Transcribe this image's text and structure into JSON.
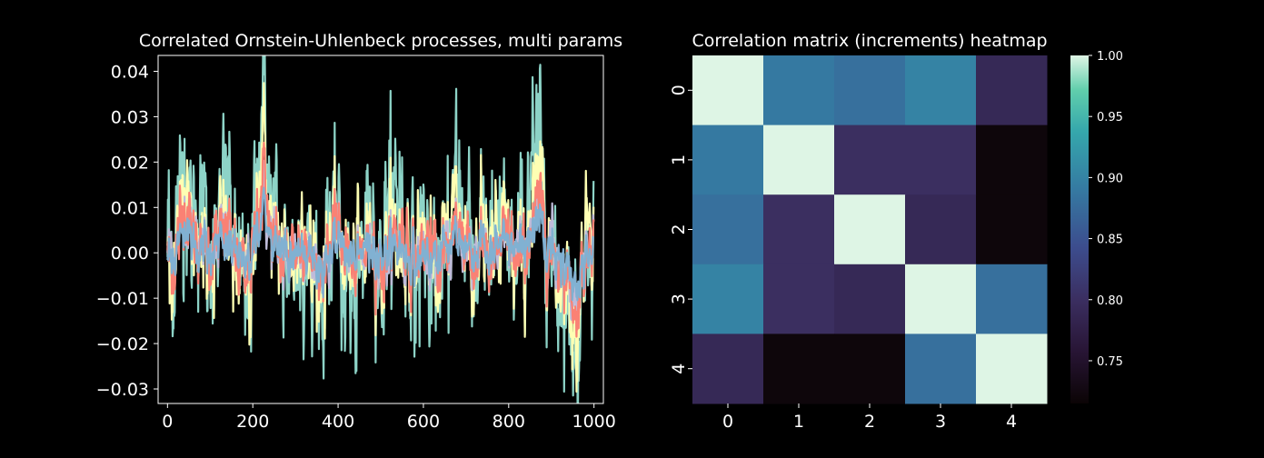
{
  "chart_data": [
    {
      "type": "line",
      "title": "Correlated Ornstein-Uhlenbeck processes, multi params",
      "xlabel": "",
      "ylabel": "",
      "xlim": [
        -22,
        1022
      ],
      "ylim": [
        -0.0332,
        0.0435
      ],
      "xticks": [
        0,
        200,
        400,
        600,
        800,
        1000
      ],
      "xtick_labels": [
        "0",
        "200",
        "400",
        "600",
        "800",
        "1000"
      ],
      "yticks": [
        -0.03,
        -0.02,
        -0.01,
        0.0,
        0.01,
        0.02,
        0.03,
        0.04
      ],
      "ytick_labels": [
        "−0.03",
        "−0.02",
        "−0.01",
        "0.00",
        "0.01",
        "0.02",
        "0.03",
        "0.04"
      ],
      "grid": false,
      "legend": "none",
      "n_points": 1000,
      "series": [
        {
          "color": "#8dd3c7",
          "approx_amplitude": 0.01
        },
        {
          "color": "#feffb3",
          "approx_amplitude": 0.006
        },
        {
          "color": "#bfbbd9",
          "approx_amplitude": 0.003
        },
        {
          "color": "#fa8174",
          "approx_amplitude": 0.004
        },
        {
          "color": "#81b1d2",
          "approx_amplitude": 0.0025
        }
      ],
      "anchors_x": [
        0,
        15,
        30,
        45,
        60,
        80,
        100,
        120,
        140,
        160,
        180,
        200,
        215,
        225,
        240,
        260,
        280,
        300,
        320,
        340,
        360,
        380,
        400,
        420,
        440,
        460,
        480,
        500,
        520,
        540,
        560,
        580,
        600,
        620,
        640,
        660,
        680,
        700,
        720,
        740,
        760,
        780,
        800,
        820,
        840,
        860,
        870,
        880,
        900,
        920,
        940,
        960,
        980,
        1000
      ],
      "anchors_y": [
        0.0,
        -0.002,
        0.008,
        0.018,
        0.006,
        0.002,
        -0.001,
        0.004,
        0.01,
        -0.002,
        -0.012,
        0.0,
        0.018,
        0.03,
        0.008,
        0.003,
        -0.002,
        0.001,
        0.006,
        -0.004,
        -0.008,
        0.002,
        0.007,
        -0.002,
        -0.006,
        0.001,
        0.004,
        -0.004,
        0.003,
        0.006,
        0.001,
        -0.003,
        0.002,
        -0.006,
        -0.004,
        0.005,
        0.011,
        0.004,
        -0.001,
        0.005,
        -0.003,
        0.003,
        0.002,
        -0.001,
        0.006,
        0.013,
        0.019,
        0.014,
        0.003,
        -0.005,
        -0.012,
        -0.019,
        0.0,
        0.01
      ]
    },
    {
      "type": "heatmap",
      "title": "Correlation matrix (increments) heatmap",
      "row_labels": [
        "0",
        "1",
        "2",
        "3",
        "4"
      ],
      "col_labels": [
        "0",
        "1",
        "2",
        "3",
        "4"
      ],
      "values": [
        [
          1.0,
          0.89,
          0.88,
          0.9,
          0.79
        ],
        [
          0.89,
          1.0,
          0.8,
          0.8,
          0.72
        ],
        [
          0.88,
          0.8,
          1.0,
          0.79,
          0.72
        ],
        [
          0.9,
          0.8,
          0.79,
          1.0,
          0.88
        ],
        [
          0.79,
          0.72,
          0.72,
          0.88,
          1.0
        ]
      ],
      "colormap": "mako",
      "vmin": 0.715,
      "vmax": 1.0,
      "colorbar_ticks": [
        1.0,
        0.95,
        0.9,
        0.85,
        0.8,
        0.75
      ],
      "colorbar_tick_labels": [
        "1.00",
        "0.95",
        "0.90",
        "0.85",
        "0.80",
        "0.75"
      ]
    }
  ]
}
